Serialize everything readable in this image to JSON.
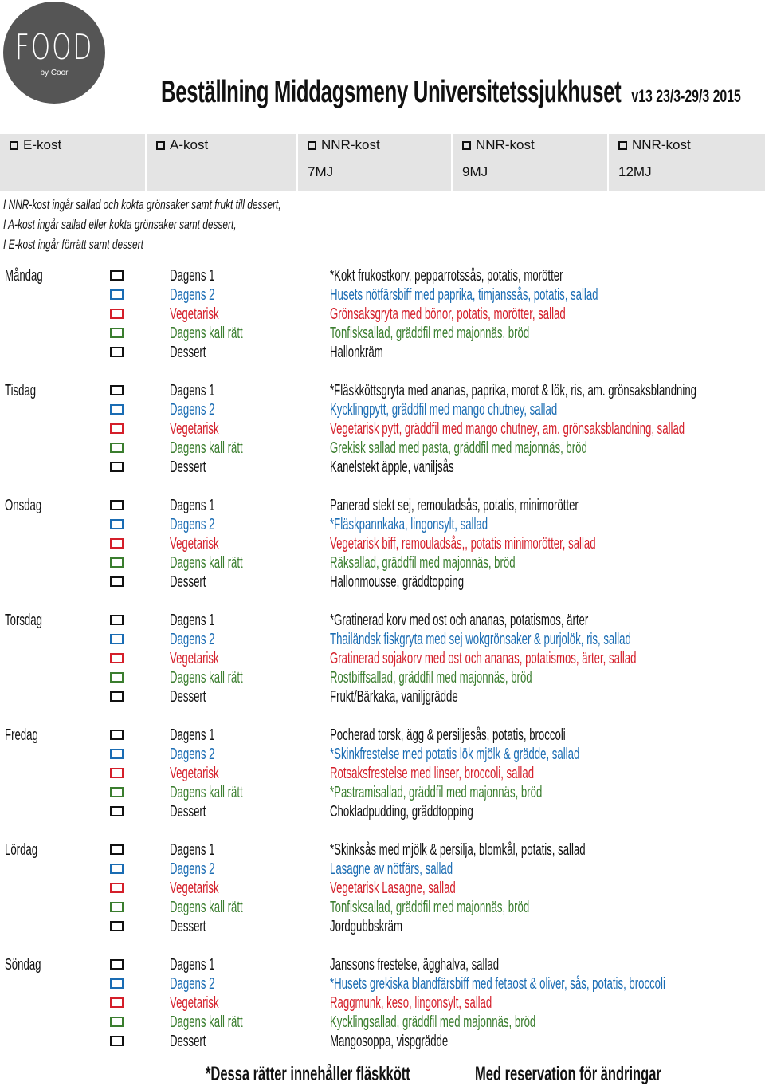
{
  "logo": {
    "brand": "FOOD",
    "sub": "by Coor"
  },
  "header": {
    "title": "Beställning Middagsmeny Universitetssjukhuset",
    "version": "v13 23/3-29/3 2015"
  },
  "kost_options": [
    {
      "label": "E-kost",
      "mj": ""
    },
    {
      "label": "A-kost",
      "mj": ""
    },
    {
      "label": "NNR-kost",
      "mj": "7MJ"
    },
    {
      "label": "NNR-kost",
      "mj": "9MJ"
    },
    {
      "label": "NNR-kost",
      "mj": "12MJ"
    }
  ],
  "notes": [
    "I NNR-kost ingår sallad och kokta grönsaker samt frukt till dessert,",
    "I A-kost ingår sallad eller kokta grönsaker samt dessert,",
    "I E-kost ingår förrätt samt dessert"
  ],
  "category_colors": {
    "Dagens 1": "#111111",
    "Dagens 2": "#1a6cb3",
    "Vegetarisk": "#d41f2a",
    "Dagens kall rätt": "#3a7d2e",
    "Dessert": "#111111"
  },
  "days": [
    {
      "name": "Måndag",
      "items": [
        {
          "category": "Dagens 1",
          "dish": "*Kokt frukostkorv, pepparrotssås, potatis, morötter"
        },
        {
          "category": "Dagens 2",
          "dish": "Husets nötfärsbiff med paprika, timjanssås, potatis, sallad"
        },
        {
          "category": "Vegetarisk",
          "dish": "Grönsaksgryta med bönor, potatis, morötter, sallad"
        },
        {
          "category": "Dagens kall rätt",
          "dish": "Tonfisksallad, gräddfil med majonnäs, bröd"
        },
        {
          "category": "Dessert",
          "dish": "Hallonkräm"
        }
      ]
    },
    {
      "name": "Tisdag",
      "items": [
        {
          "category": "Dagens 1",
          "dish": "*Fläskköttsgryta med ananas, paprika, morot & lök, ris, am. grönsaksblandning"
        },
        {
          "category": "Dagens 2",
          "dish": "Kycklingpytt, gräddfil med mango chutney, sallad"
        },
        {
          "category": "Vegetarisk",
          "dish": "Vegetarisk pytt, gräddfil med mango chutney, am. grönsaksblandning, sallad"
        },
        {
          "category": "Dagens kall rätt",
          "dish": "Grekisk sallad med pasta, gräddfil med majonnäs, bröd"
        },
        {
          "category": "Dessert",
          "dish": "Kanelstekt äpple, vaniljsås"
        }
      ]
    },
    {
      "name": "Onsdag",
      "items": [
        {
          "category": "Dagens 1",
          "dish": "Panerad stekt sej, remouladsås, potatis, minimorötter"
        },
        {
          "category": "Dagens 2",
          "dish": "*Fläskpannkaka, lingonsylt, sallad"
        },
        {
          "category": "Vegetarisk",
          "dish": "Vegetarisk biff, remouladsås,, potatis minimorötter, sallad"
        },
        {
          "category": "Dagens kall rätt",
          "dish": " Räksallad, gräddfil med majonnäs, bröd"
        },
        {
          "category": "Dessert",
          "dish": "Hallonmousse, gräddtopping"
        }
      ]
    },
    {
      "name": "Torsdag",
      "items": [
        {
          "category": "Dagens 1",
          "dish": "*Gratinerad korv med ost och ananas, potatismos, ärter"
        },
        {
          "category": "Dagens 2",
          "dish": "Thailändsk fiskgryta med sej wokgrönsaker & purjolök, ris, sallad"
        },
        {
          "category": "Vegetarisk",
          "dish": "Gratinerad sojakorv med ost och ananas, potatismos, ärter, sallad"
        },
        {
          "category": "Dagens kall rätt",
          "dish": "Rostbiffsallad, gräddfil med majonnäs, bröd"
        },
        {
          "category": "Dessert",
          "dish": "Frukt/Bärkaka, vaniljgrädde"
        }
      ]
    },
    {
      "name": "Fredag",
      "items": [
        {
          "category": "Dagens 1",
          "dish": "Pocherad torsk, ägg & persiljesås, potatis, broccoli"
        },
        {
          "category": "Dagens 2",
          "dish": "*Skinkfrestelse med potatis lök mjölk & grädde, sallad"
        },
        {
          "category": "Vegetarisk",
          "dish": "Rotsaksfrestelse med linser, broccoli, sallad"
        },
        {
          "category": "Dagens kall rätt",
          "dish": "*Pastramisallad, gräddfil med majonnäs, bröd"
        },
        {
          "category": "Dessert",
          "dish": "Chokladpudding, gräddtopping"
        }
      ]
    },
    {
      "name": "Lördag",
      "items": [
        {
          "category": "Dagens 1",
          "dish": "*Skinksås med mjölk & persilja, blomkål, potatis, sallad"
        },
        {
          "category": "Dagens 2",
          "dish": "Lasagne av nötfärs, sallad"
        },
        {
          "category": "Vegetarisk",
          "dish": "Vegetarisk Lasagne, sallad"
        },
        {
          "category": "Dagens kall rätt",
          "dish": "Tonfisksallad, gräddfil med majonnäs, bröd"
        },
        {
          "category": "Dessert",
          "dish": "Jordgubbskräm"
        }
      ]
    },
    {
      "name": "Söndag",
      "items": [
        {
          "category": "Dagens 1",
          "dish": "Janssons frestelse, ägghalva, sallad"
        },
        {
          "category": "Dagens 2",
          "dish": "*Husets grekiska blandfärsbiff med fetaost & oliver, sås, potatis, broccoli"
        },
        {
          "category": "Vegetarisk",
          "dish": "Raggmunk, keso, lingonsylt, sallad"
        },
        {
          "category": "Dagens kall rätt",
          "dish": "Kycklingsallad, gräddfil med majonnäs, bröd"
        },
        {
          "category": "Dessert",
          "dish": "Mangosoppa, vispgrädde"
        }
      ]
    }
  ],
  "footer": {
    "pork_note": "*Dessa rätter innehåller fläskkött",
    "reservation": "Med reservation för ändringar"
  }
}
